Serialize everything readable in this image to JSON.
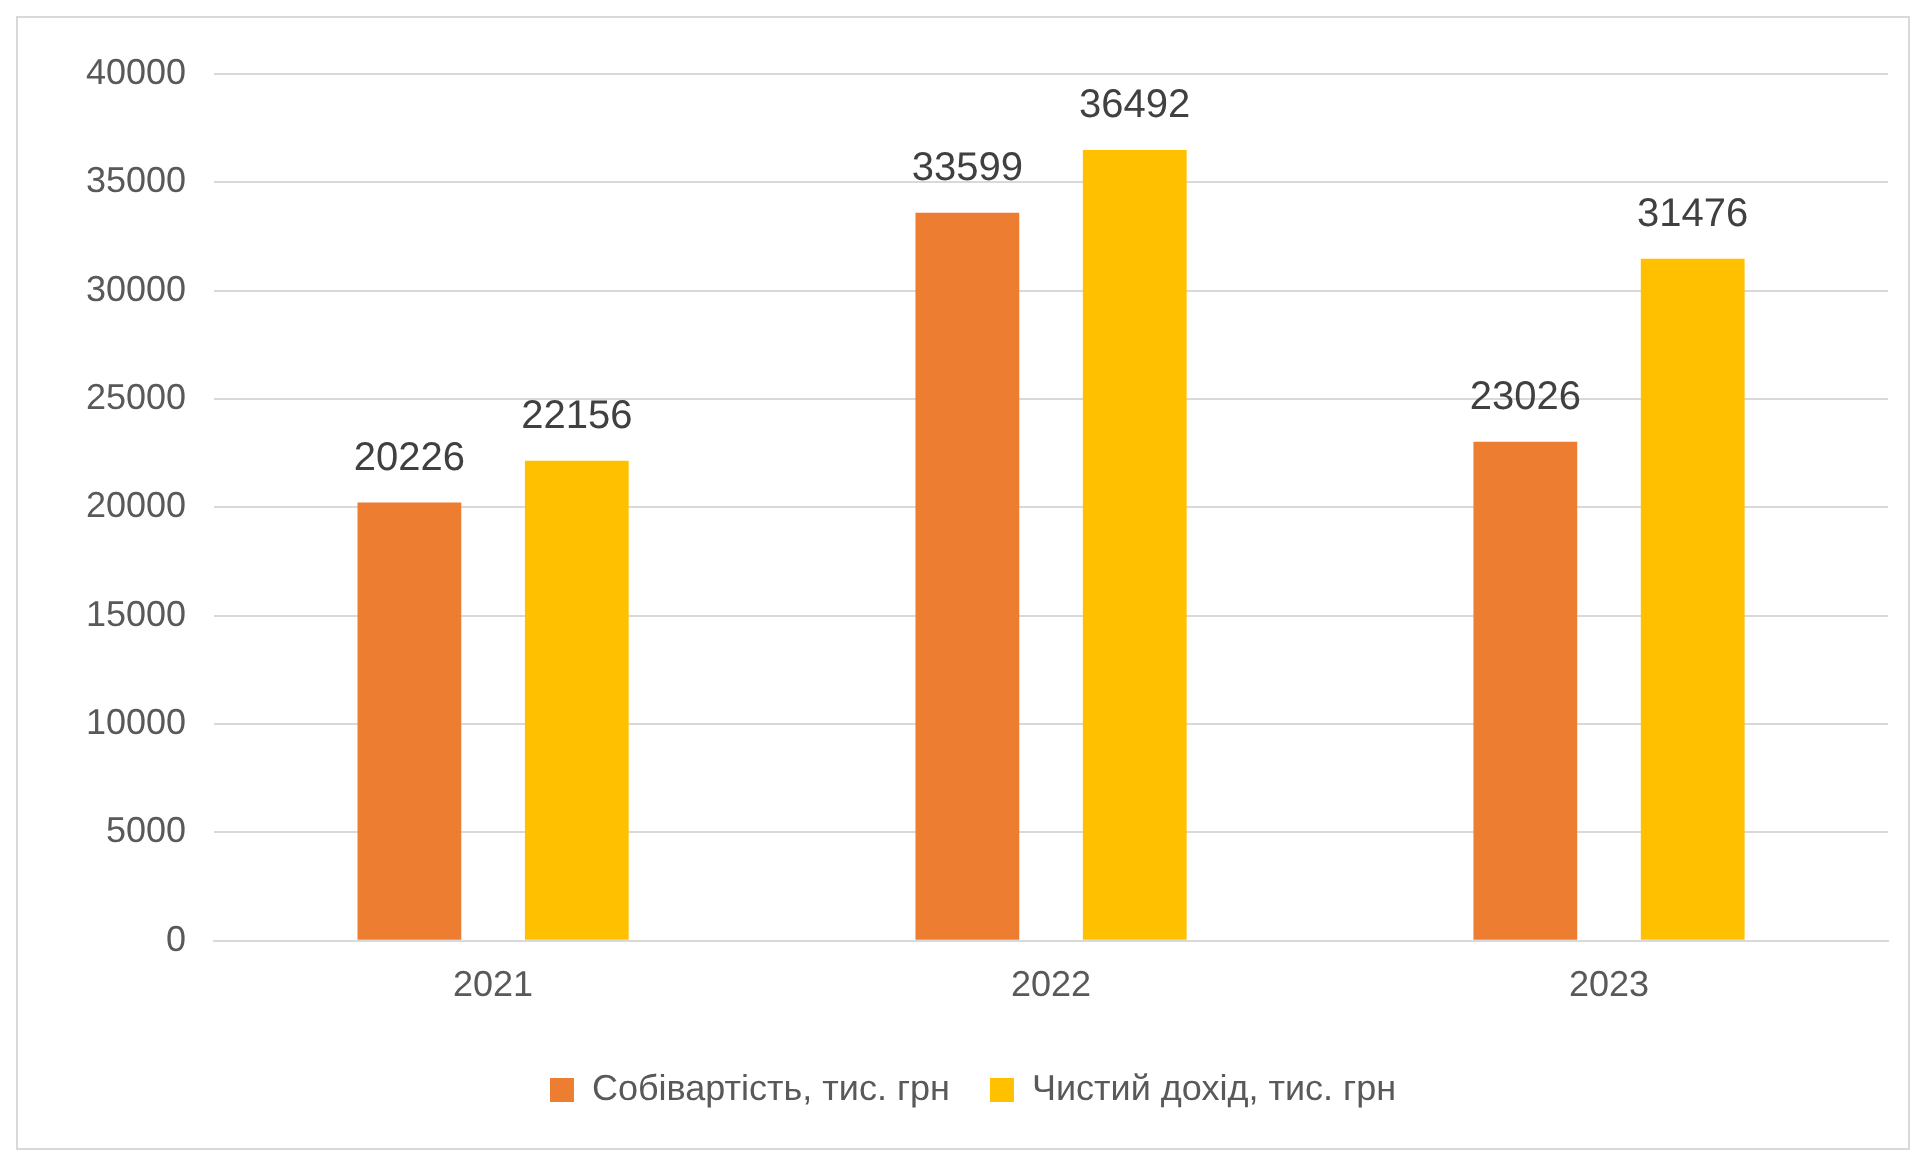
{
  "chart_data": {
    "type": "bar",
    "categories": [
      "2021",
      "2022",
      "2023"
    ],
    "series": [
      {
        "name": "Собівартість, тис. грн",
        "color": "#ed7d31",
        "values": [
          20226,
          33599,
          23026
        ]
      },
      {
        "name": "Чистий дохід, тис. грн",
        "color": "#ffc000",
        "values": [
          22156,
          36492,
          31476
        ]
      }
    ],
    "ylim": [
      0,
      40000
    ],
    "yticks": [
      0,
      5000,
      10000,
      15000,
      20000,
      25000,
      30000,
      35000,
      40000
    ],
    "grid": "y",
    "legend": "bottom",
    "data_labels": true
  }
}
